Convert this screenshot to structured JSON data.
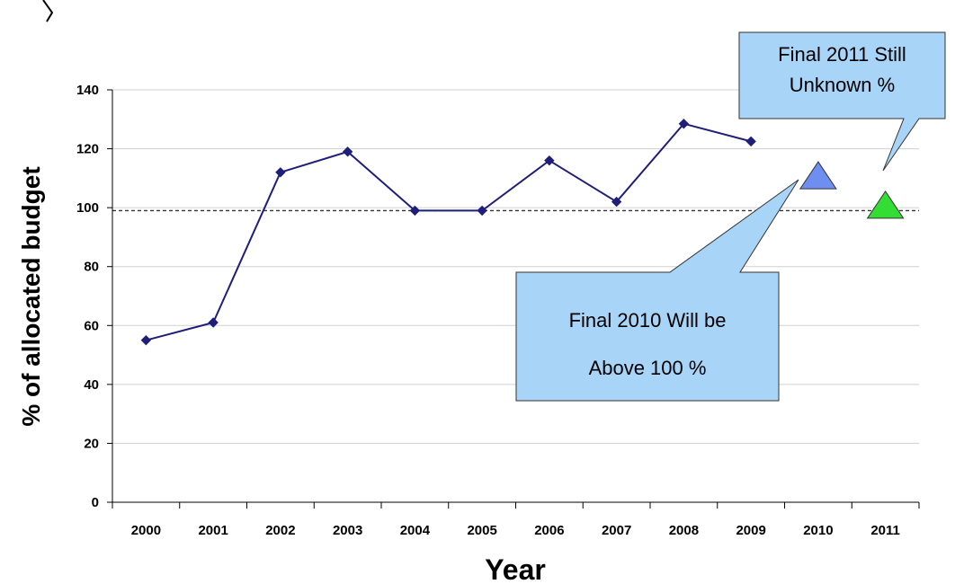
{
  "chart_data": {
    "type": "line",
    "title": "",
    "xlabel": "Year",
    "ylabel": "% of allocated budget",
    "categories": [
      "2000",
      "2001",
      "2002",
      "2003",
      "2004",
      "2005",
      "2006",
      "2007",
      "2008",
      "2009",
      "2010",
      "2011"
    ],
    "series": [
      {
        "values": [
          55,
          61,
          112,
          119,
          99,
          99,
          116,
          102,
          128.5,
          122.5,
          null,
          null
        ],
        "color": "#1f1f7a"
      }
    ],
    "markers": [
      {
        "category": "2010",
        "value": 111,
        "shape": "triangle",
        "color": "#6f8ff0"
      },
      {
        "category": "2011",
        "value": 101,
        "shape": "triangle",
        "color": "#33dd33"
      }
    ],
    "reference_line": {
      "value": 99,
      "style": "dashed"
    },
    "ylim": [
      0,
      140
    ],
    "yticks": [
      0,
      20,
      40,
      60,
      80,
      100,
      120,
      140
    ],
    "grid": true,
    "legend": "none",
    "annotations": [
      {
        "lines": [
          "Final 2011 Still",
          "Unknown %"
        ],
        "points_to": "2011"
      },
      {
        "lines": [
          "Final 2010 Will be",
          "Above 100 %"
        ],
        "points_to": "2010"
      }
    ]
  }
}
